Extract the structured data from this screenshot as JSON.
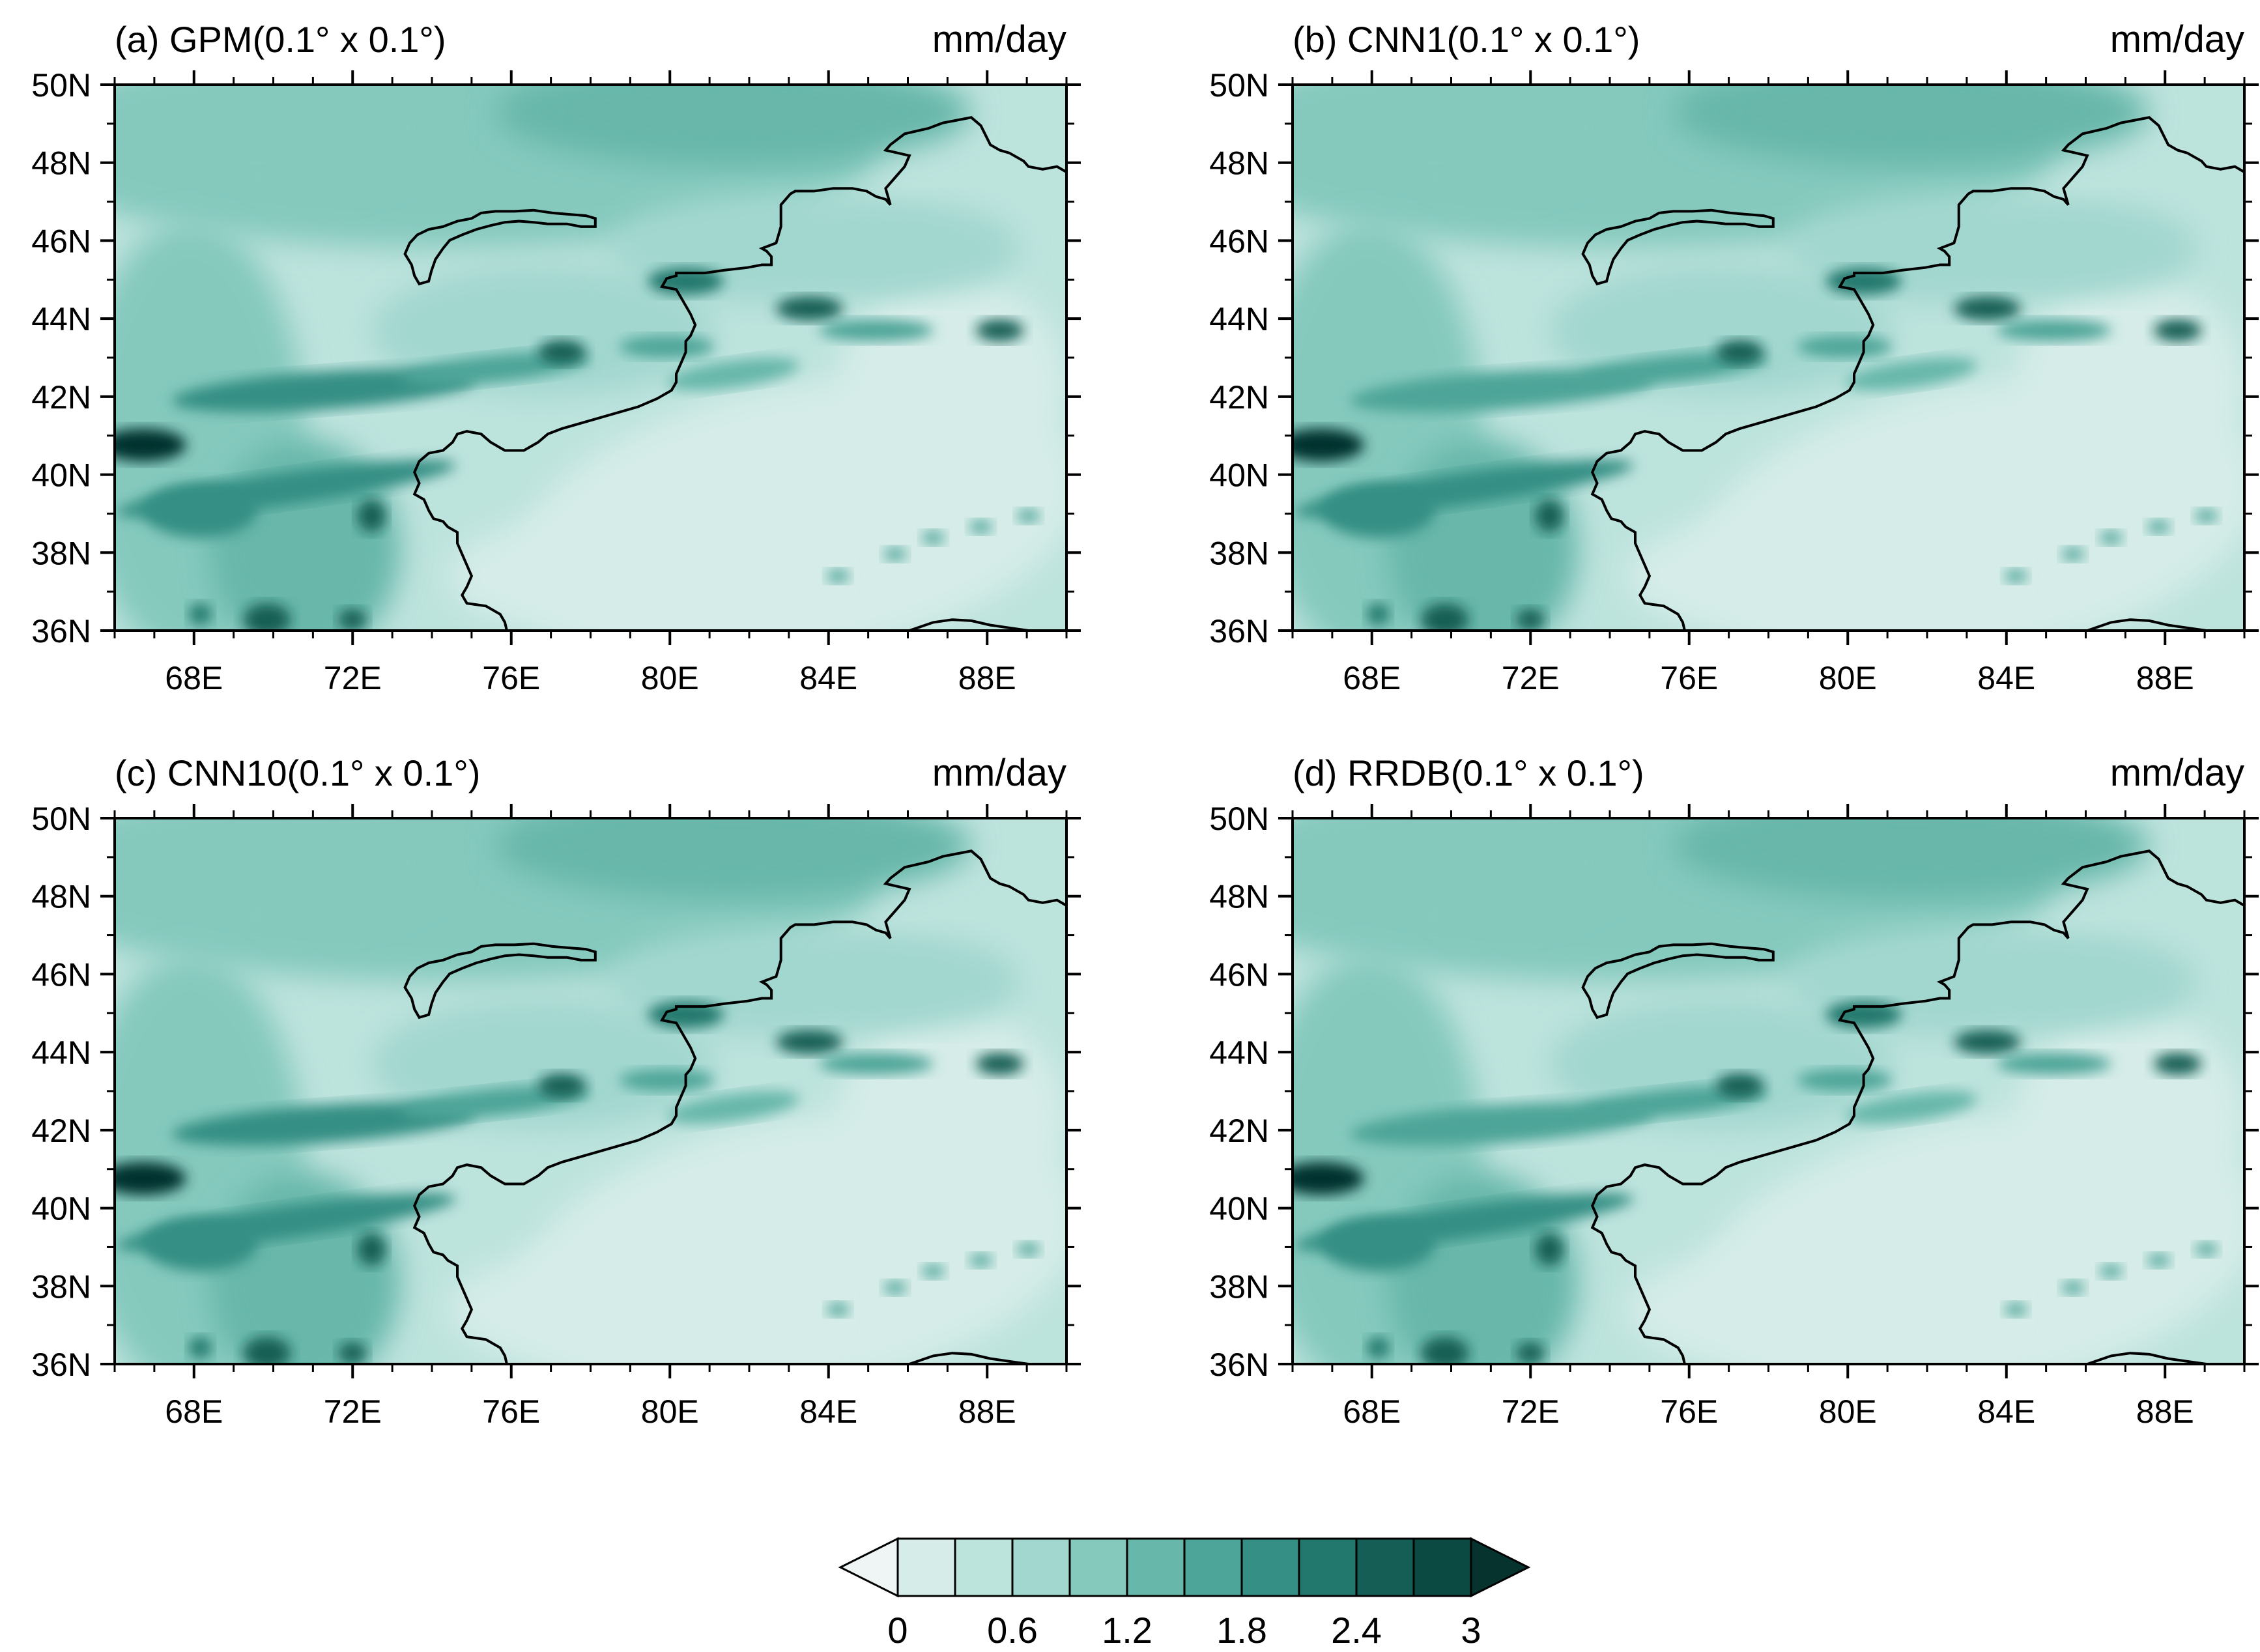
{
  "panels": [
    {
      "id": "a",
      "title_prefix": "(a) GPM",
      "title_res": "(0.1° x 0.1°)",
      "units": "mm/day"
    },
    {
      "id": "b",
      "title_prefix": "(b) CNN1",
      "title_res": "(0.1° x 0.1°)",
      "units": "mm/day"
    },
    {
      "id": "c",
      "title_prefix": "(c) CNN10",
      "title_res": "(0.1° x 0.1°)",
      "units": "mm/day"
    },
    {
      "id": "d",
      "title_prefix": "(d) RRDB",
      "title_res": "(0.1° x 0.1°)",
      "units": "mm/day"
    }
  ],
  "axes": {
    "lat_labels": [
      "50N",
      "48N",
      "46N",
      "44N",
      "42N",
      "40N",
      "38N",
      "36N"
    ],
    "lon_labels": [
      "68E",
      "72E",
      "76E",
      "80E",
      "84E",
      "88E"
    ],
    "lat_range": [
      36,
      50
    ],
    "lon_range": [
      66,
      90
    ]
  },
  "colorbar": {
    "labels": [
      "0",
      "0.6",
      "1.2",
      "1.8",
      "2.4",
      "3"
    ],
    "levels": [
      0,
      0.3,
      0.6,
      0.9,
      1.2,
      1.5,
      1.8,
      2.1,
      2.4,
      2.7,
      3
    ],
    "colors": [
      "#eef5f4",
      "#d5ece8",
      "#bde3dd",
      "#a2d7cf",
      "#85c9bd",
      "#67b7aa",
      "#4da498",
      "#358f84",
      "#22786d",
      "#145e55",
      "#0b4a43",
      "#06332e"
    ]
  }
}
